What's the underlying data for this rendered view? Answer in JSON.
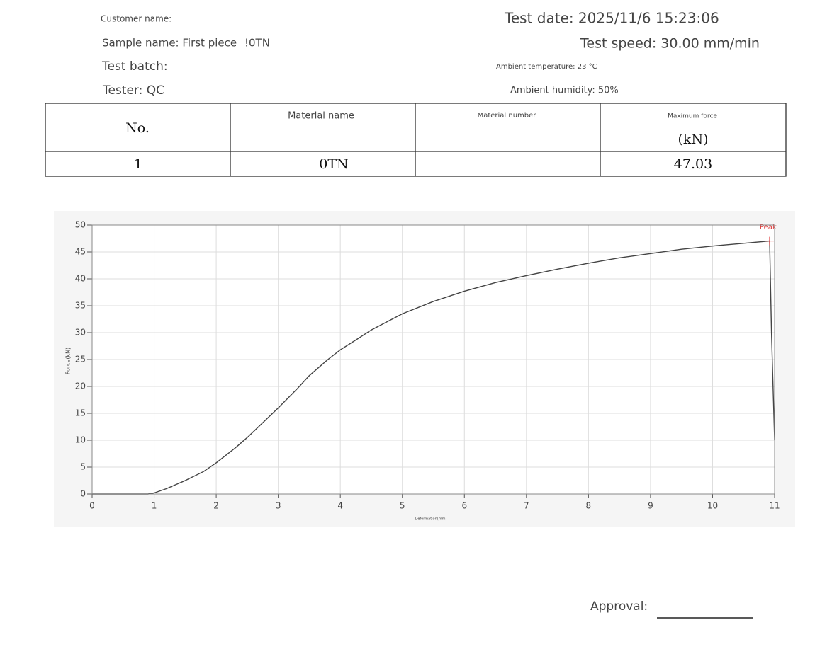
{
  "header": {
    "customer_name": "Customer name:",
    "sample_name": "Sample name: First piece",
    "sample_code": "!0TN",
    "test_batch": "Test batch:",
    "tester": "Tester: QC",
    "test_date": "Test date: 2025/11/6 15:23:06",
    "test_speed": "Test speed: 30.00 mm/min",
    "ambient_temperature": "Ambient temperature: 23 °C",
    "ambient_humidity": "Ambient humidity: 50%"
  },
  "table": {
    "columns": [
      "No.",
      "Material name",
      "Material number",
      "Maximum force"
    ],
    "unit": "(kN)",
    "row": {
      "no": "1",
      "material_name": "0TN",
      "maximum_force": "47.03"
    }
  },
  "chart_data": {
    "type": "line",
    "x_label": "Deformation(mm)",
    "y_label": "Force(kN)",
    "x": [
      0,
      0.9,
      1.0,
      1.2,
      1.5,
      1.8,
      2.0,
      2.3,
      2.5,
      2.8,
      3.0,
      3.3,
      3.5,
      3.8,
      4.0,
      4.3,
      4.5,
      5.0,
      5.5,
      6.0,
      6.5,
      7.0,
      7.5,
      8.0,
      8.5,
      9.0,
      9.5,
      10.0,
      10.5,
      10.92,
      10.95,
      11.0
    ],
    "series": [
      {
        "name": "Force",
        "color": "#444444",
        "values": [
          0,
          0,
          0.2,
          1,
          2.5,
          4.2,
          5.8,
          8.5,
          10.5,
          13.8,
          16,
          19.5,
          22,
          25,
          26.8,
          29,
          30.5,
          33.5,
          35.8,
          37.7,
          39.3,
          40.6,
          41.8,
          42.9,
          43.9,
          44.7,
          45.5,
          46.1,
          46.6,
          47.03,
          30,
          10
        ]
      }
    ],
    "peak": {
      "x": 10.92,
      "y": 47.03,
      "label": "Peak",
      "color": "#e04040"
    },
    "xlim": [
      0,
      11
    ],
    "ylim": [
      0,
      50
    ],
    "xticks": [
      0,
      1,
      2,
      3,
      4,
      5,
      6,
      7,
      8,
      9,
      10,
      11
    ],
    "yticks": [
      0,
      5,
      10,
      15,
      20,
      25,
      30,
      35,
      40,
      45,
      50
    ],
    "grid": true
  },
  "footer": {
    "approval": "Approval:"
  }
}
